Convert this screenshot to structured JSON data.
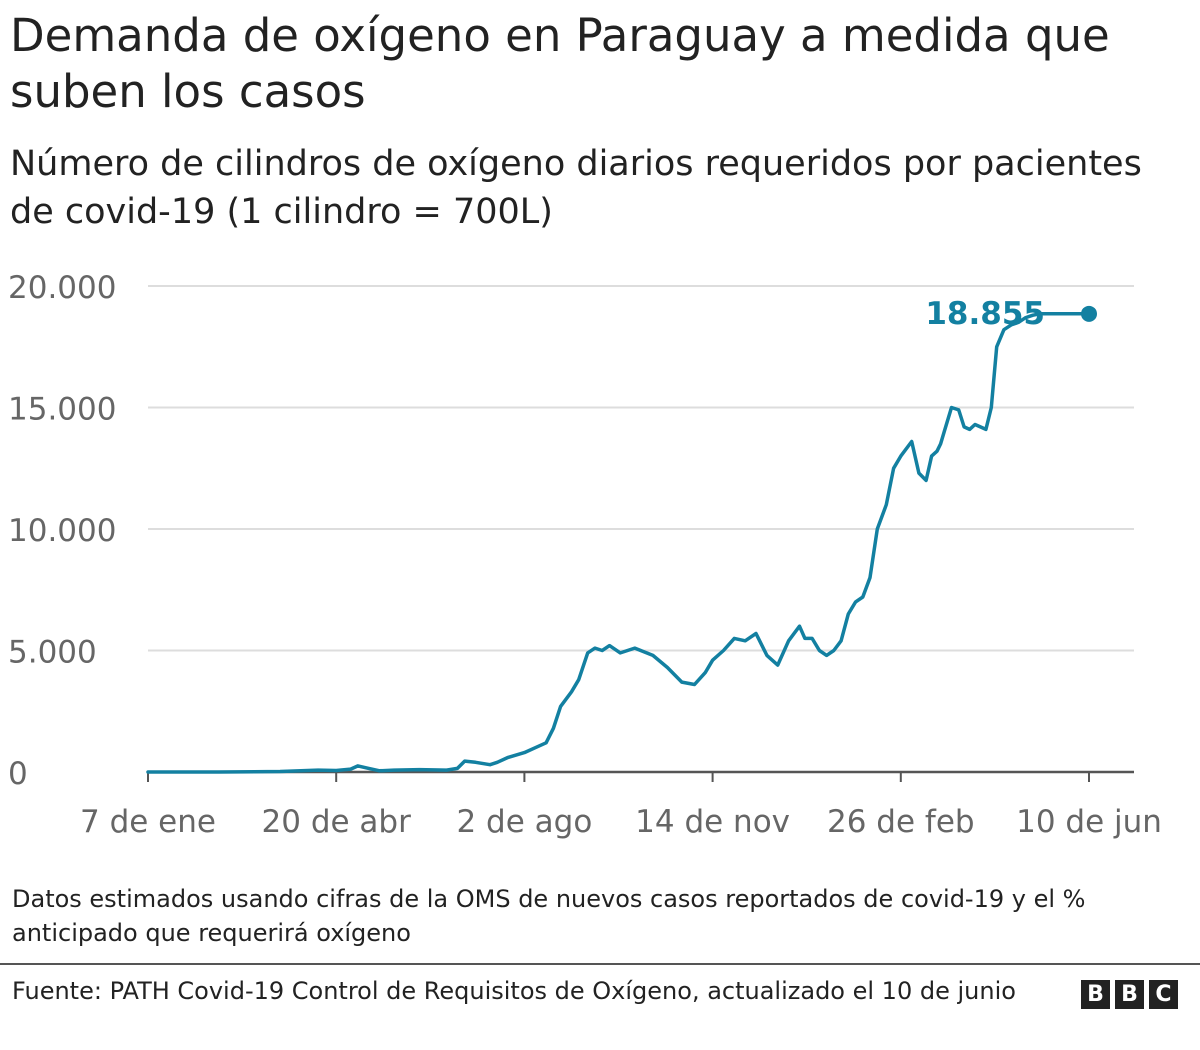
{
  "title": "Demanda de oxígeno en Paraguay a medida que suben los casos",
  "subtitle": "Número de cilindros de oxígeno diarios requeridos por pacientes de covid-19 (1 cilindro = 700L)",
  "note": "Datos estimados usando cifras de la OMS de nuevos casos reportados de covid-19 y el % anticipado que requerirá oxígeno",
  "source": "Fuente: PATH Covid-19 Control de Requisitos de Oxígeno, actualizado el 10 de junio",
  "logo": [
    "B",
    "B",
    "C"
  ],
  "colors": {
    "line": "#1380a1",
    "label": "#1380a1",
    "grid": "#dddddd",
    "axis": "#555555",
    "tick_text": "#666666"
  },
  "chart_data": {
    "type": "line",
    "title": "Demanda de oxígeno en Paraguay a medida que suben los casos",
    "subtitle": "Número de cilindros de oxígeno diarios requeridos por pacientes de covid-19 (1 cilindro = 700L)",
    "xlabel": "",
    "ylabel": "",
    "x_start": "2020-01-07",
    "x_end": "2021-06-10",
    "ylim": [
      0,
      20000
    ],
    "grid": true,
    "legend": "none",
    "y_ticks": [
      {
        "value": 0,
        "label": "0"
      },
      {
        "value": 5000,
        "label": "5.000"
      },
      {
        "value": 10000,
        "label": "10.000"
      },
      {
        "value": 15000,
        "label": "15.000"
      },
      {
        "value": 20000,
        "label": "20.000"
      }
    ],
    "x_ticks": [
      {
        "date": "2020-01-07",
        "label": "7 de ene"
      },
      {
        "date": "2020-04-20",
        "label": "20 de abr"
      },
      {
        "date": "2020-08-02",
        "label": "2 de ago"
      },
      {
        "date": "2020-11-14",
        "label": "14 de nov"
      },
      {
        "date": "2021-02-26",
        "label": "26 de feb"
      },
      {
        "date": "2021-06-10",
        "label": "10 de jun"
      }
    ],
    "end_label": "18.855",
    "series": [
      {
        "x": [
          "2020-01-07",
          "2020-02-15",
          "2020-03-20",
          "2020-04-10",
          "2020-04-20",
          "2020-04-28",
          "2020-05-02",
          "2020-05-08",
          "2020-05-14",
          "2020-05-22",
          "2020-06-05",
          "2020-06-20",
          "2020-06-26",
          "2020-06-30",
          "2020-07-06",
          "2020-07-14",
          "2020-07-18",
          "2020-07-24",
          "2020-08-02",
          "2020-08-08",
          "2020-08-14",
          "2020-08-18",
          "2020-08-22",
          "2020-08-28",
          "2020-09-01",
          "2020-09-06",
          "2020-09-10",
          "2020-09-14",
          "2020-09-18",
          "2020-09-24",
          "2020-10-02",
          "2020-10-12",
          "2020-10-20",
          "2020-10-28",
          "2020-11-04",
          "2020-11-10",
          "2020-11-14",
          "2020-11-20",
          "2020-11-26",
          "2020-12-02",
          "2020-12-08",
          "2020-12-14",
          "2020-12-20",
          "2020-12-26",
          "2021-01-01",
          "2021-01-04",
          "2021-01-08",
          "2021-01-12",
          "2021-01-16",
          "2021-01-20",
          "2021-01-24",
          "2021-01-28",
          "2021-02-01",
          "2021-02-05",
          "2021-02-09",
          "2021-02-13",
          "2021-02-18",
          "2021-02-22",
          "2021-02-26",
          "2021-03-04",
          "2021-03-08",
          "2021-03-12",
          "2021-03-15",
          "2021-03-18",
          "2021-03-20",
          "2021-03-22",
          "2021-03-26",
          "2021-03-30",
          "2021-04-02",
          "2021-04-05",
          "2021-04-08",
          "2021-04-11",
          "2021-04-14",
          "2021-04-17",
          "2021-04-20",
          "2021-04-24",
          "2021-04-28",
          "2021-05-02",
          "2021-05-06",
          "2021-05-10",
          "2021-05-14",
          "2021-05-18",
          "2021-05-22",
          "2021-05-26",
          "2021-05-30",
          "2021-06-03",
          "2021-06-07",
          "2021-06-10"
        ],
        "y": [
          0,
          0,
          20,
          80,
          60,
          120,
          250,
          150,
          50,
          80,
          100,
          80,
          150,
          450,
          400,
          300,
          400,
          600,
          800,
          1000,
          1200,
          1800,
          2700,
          3300,
          3800,
          4900,
          5100,
          5000,
          5200,
          4900,
          5100,
          4800,
          4300,
          3700,
          3600,
          4100,
          4600,
          5000,
          5500,
          5400,
          5700,
          4800,
          4400,
          5400,
          6000,
          5500,
          5500,
          5000,
          4800,
          5000,
          5400,
          6500,
          7000,
          7200,
          8000,
          10000,
          11000,
          12500,
          13000,
          13600,
          12300,
          12000,
          13000,
          13200,
          13500,
          14000,
          15000,
          14900,
          14200,
          14100,
          14300,
          14200,
          14100,
          15000,
          17500,
          18200,
          18400,
          18500,
          18700,
          18800,
          18855,
          18855,
          18855,
          18855,
          18855,
          18855,
          18855,
          18855
        ]
      }
    ]
  }
}
